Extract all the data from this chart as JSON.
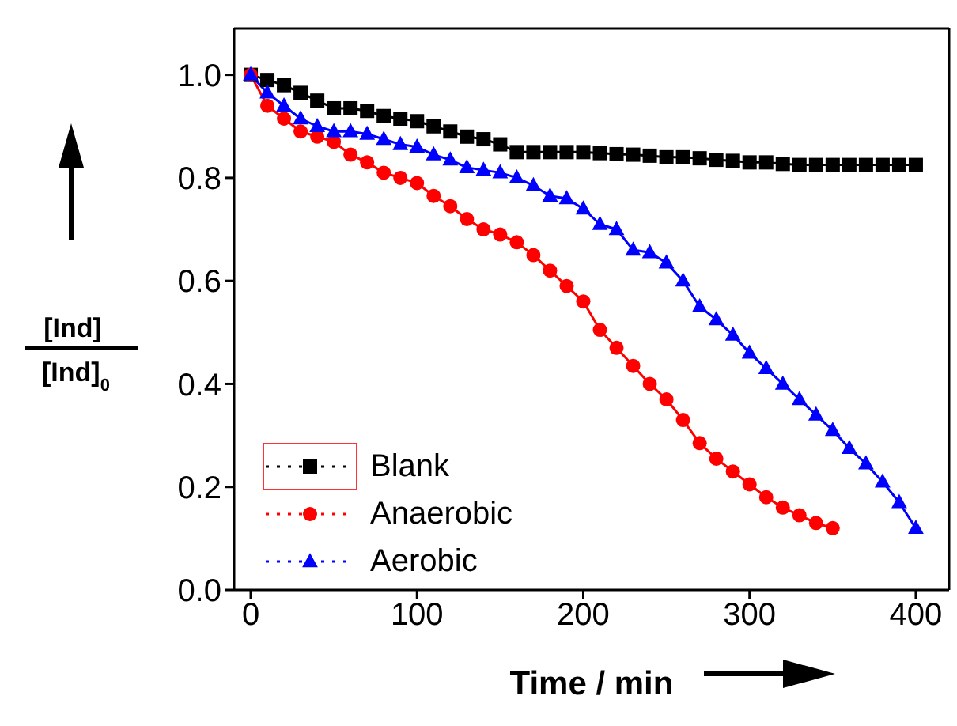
{
  "chart_data": {
    "type": "line",
    "xlabel": "Time / min",
    "ylabel": "[Ind]/[Ind]$_{0}$",
    "x": [
      0,
      10,
      20,
      30,
      40,
      50,
      60,
      70,
      80,
      90,
      100,
      110,
      120,
      130,
      140,
      150,
      160,
      170,
      180,
      190,
      200,
      210,
      220,
      230,
      240,
      250,
      260,
      270,
      280,
      290,
      300,
      310,
      320,
      330,
      340,
      350,
      360,
      370,
      380,
      390,
      400
    ],
    "series": [
      {
        "name": "Blank",
        "color": "#000000",
        "marker": "square",
        "values": [
          1.0,
          0.99,
          0.98,
          0.965,
          0.95,
          0.935,
          0.935,
          0.93,
          0.92,
          0.915,
          0.91,
          0.9,
          0.89,
          0.88,
          0.875,
          0.865,
          0.85,
          0.85,
          0.85,
          0.85,
          0.85,
          0.848,
          0.846,
          0.845,
          0.843,
          0.84,
          0.84,
          0.838,
          0.835,
          0.833,
          0.83,
          0.83,
          0.827,
          0.825,
          0.825,
          0.825,
          0.825,
          0.825,
          0.825,
          0.825,
          0.825
        ]
      },
      {
        "name": "Anaerobic",
        "color": "#ff0000",
        "marker": "circle",
        "values": [
          1.0,
          0.94,
          0.915,
          0.89,
          0.88,
          0.87,
          0.845,
          0.83,
          0.81,
          0.8,
          0.79,
          0.765,
          0.745,
          0.72,
          0.7,
          0.69,
          0.675,
          0.65,
          0.62,
          0.59,
          0.56,
          0.505,
          0.47,
          0.435,
          0.4,
          0.37,
          0.33,
          0.285,
          0.255,
          0.23,
          0.205,
          0.18,
          0.16,
          0.145,
          0.13,
          0.12,
          null,
          null,
          null,
          null,
          null
        ]
      },
      {
        "name": "Aerobic",
        "color": "#0000ff",
        "marker": "triangle",
        "values": [
          1.0,
          0.965,
          0.94,
          0.915,
          0.9,
          0.89,
          0.89,
          0.885,
          0.875,
          0.865,
          0.86,
          0.845,
          0.835,
          0.82,
          0.815,
          0.81,
          0.8,
          0.785,
          0.765,
          0.76,
          0.74,
          0.71,
          0.7,
          0.66,
          0.655,
          0.635,
          0.6,
          0.55,
          0.525,
          0.495,
          0.46,
          0.43,
          0.4,
          0.37,
          0.34,
          0.31,
          0.275,
          0.245,
          0.21,
          0.17,
          0.12
        ]
      }
    ],
    "xlim": [
      -10,
      420
    ],
    "xticks": [
      0,
      100,
      200,
      300,
      400
    ],
    "ylim": [
      0,
      1.09
    ],
    "yticks": [
      {
        "value": 0,
        "label": "0.0"
      },
      0.2,
      0.4,
      0.6,
      0.8,
      {
        "value": 1,
        "label": "1.0"
      }
    ],
    "grid": false,
    "legend": "bottom left",
    "line_style": "solid"
  }
}
